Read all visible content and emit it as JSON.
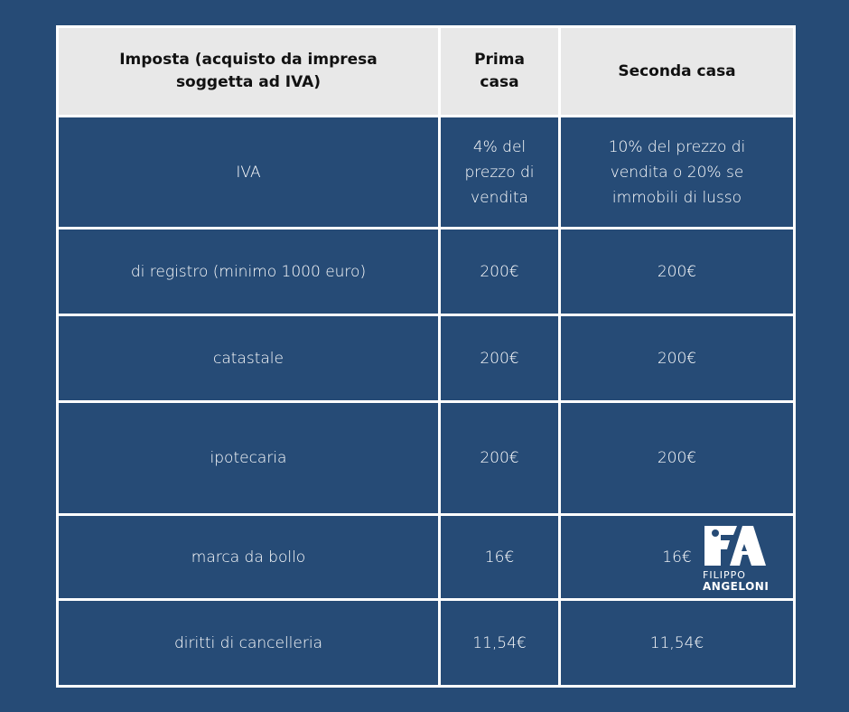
{
  "table": {
    "headers": [
      "Imposta (acquisto da impresa soggetta ad IVA)",
      "Prima casa",
      "Seconda casa"
    ],
    "rows": [
      [
        "IVA",
        "4% del prezzo di vendita",
        "10% del prezzo di vendita o 20% se immobili di lusso"
      ],
      [
        "di registro (minimo 1000 euro)",
        "200€",
        "200€"
      ],
      [
        "catastale",
        "200€",
        "200€"
      ],
      [
        "ipotecaria",
        "200€",
        "200€"
      ],
      [
        "marca da bollo",
        "16€",
        "16€"
      ],
      [
        "diritti di cancelleria",
        "11,54€",
        "11,54€"
      ]
    ]
  },
  "logo": {
    "first_name": "FILIPPO",
    "last_name": "ANGELONI"
  },
  "colors": {
    "background": "#264b76",
    "header": "#e8e8e8",
    "border": "#ffffff"
  }
}
